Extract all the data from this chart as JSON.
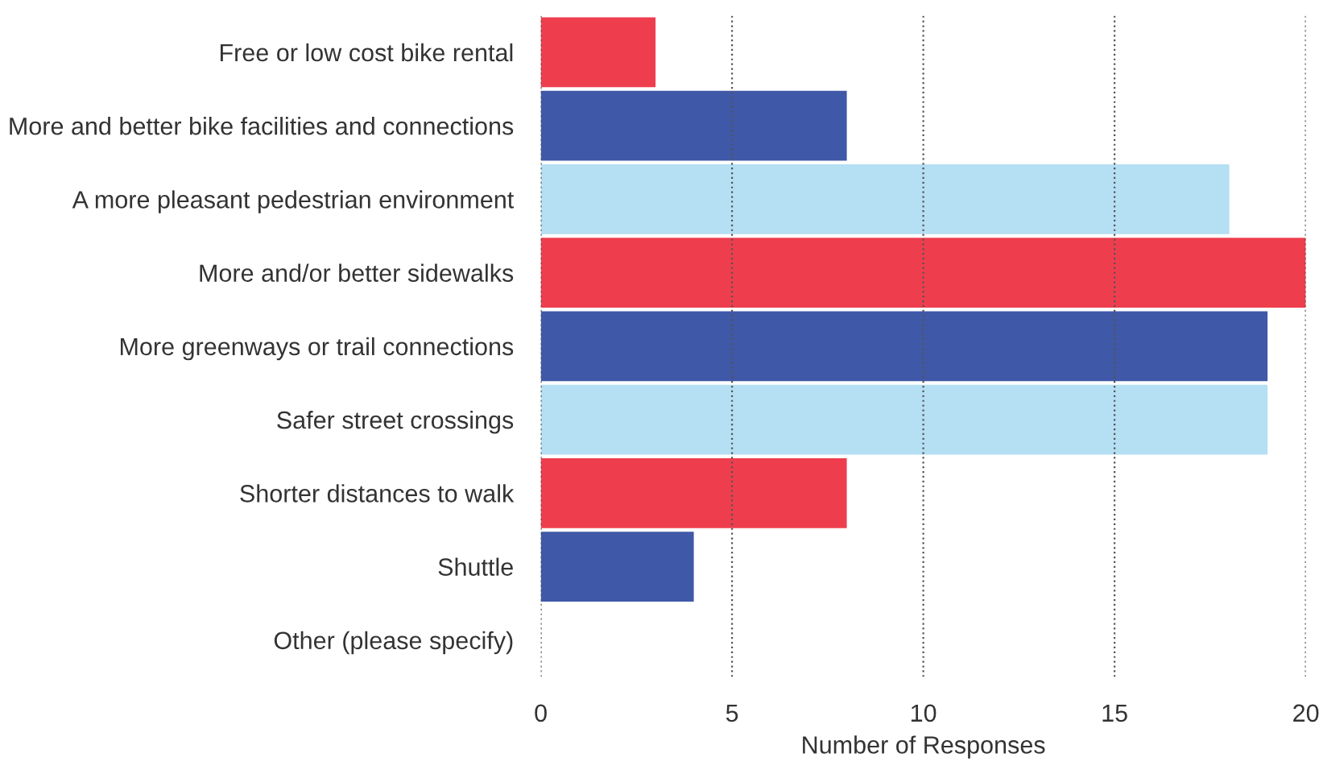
{
  "chart_data": {
    "type": "bar",
    "orientation": "horizontal",
    "xlabel": "Number of Responses",
    "categories": [
      "Free or low cost bike rental",
      "More and better bike facilities and connections",
      "A more pleasant pedestrian environment",
      "More and/or better sidewalks",
      "More greenways or trail connections",
      "Safer street crossings",
      "Shorter distances to walk",
      "Shuttle",
      "Other (please specify)"
    ],
    "values": [
      3,
      8,
      18,
      20,
      19,
      19,
      8,
      4,
      0
    ],
    "colors": [
      "#ee3e4e",
      "#3f58a7",
      "#b5dff3",
      "#ee3e4e",
      "#3f58a7",
      "#b5dff3",
      "#ee3e4e",
      "#3f58a7",
      "#b5dff3"
    ],
    "xlim": [
      0,
      20
    ],
    "xticks": [
      0,
      5,
      10,
      15,
      20
    ],
    "grid": "x",
    "line_style": "dotted"
  }
}
